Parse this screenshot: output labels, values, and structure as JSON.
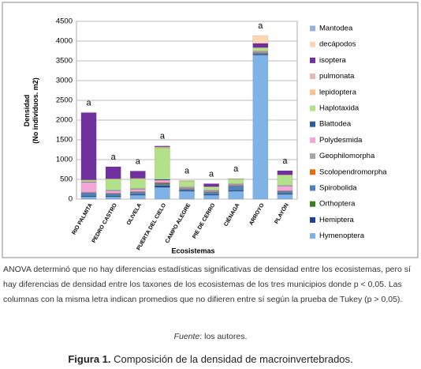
{
  "chart_data": {
    "type": "stacked_bar",
    "ylabel": [
      "Densidad",
      "(No individuos. m2)"
    ],
    "xlabel": "Ecosistemas",
    "categories": [
      "RIO PALMITA",
      "PEDRO CASTRO",
      "OLIVELA",
      "PUERTA DEL CIELO",
      "CAMPO ALEGRE",
      "PIE DE CERRO",
      "CIÉNAGA",
      "ARROYO",
      "PLAYÓN"
    ],
    "annotations": [
      "a",
      "a",
      "a",
      "a",
      "a",
      "a",
      "a",
      "a",
      "a"
    ],
    "ylim": [
      0,
      4500
    ],
    "yticks": [
      0,
      500,
      1000,
      1500,
      2000,
      2500,
      3000,
      3500,
      4000,
      4500
    ],
    "grid": true,
    "series": [
      {
        "name": "Hymenoptera",
        "color": "#7fb2e5",
        "values": [
          60,
          60,
          100,
          300,
          200,
          100,
          200,
          3650,
          120
        ]
      },
      {
        "name": "Hemiptera",
        "color": "#1f3f8f",
        "values": [
          10,
          10,
          10,
          20,
          10,
          10,
          10,
          10,
          10
        ]
      },
      {
        "name": "Orthoptera",
        "color": "#3a7d22",
        "values": [
          5,
          5,
          5,
          10,
          5,
          5,
          5,
          5,
          5
        ]
      },
      {
        "name": "Spirobolida",
        "color": "#4f81bd",
        "values": [
          80,
          60,
          60,
          60,
          40,
          60,
          120,
          30,
          60
        ]
      },
      {
        "name": "Scolopendromorpha",
        "color": "#e46c0a",
        "values": [
          10,
          10,
          10,
          20,
          10,
          10,
          10,
          10,
          10
        ]
      },
      {
        "name": "Geophilomorpha",
        "color": "#a6a6a6",
        "values": [
          10,
          10,
          10,
          10,
          10,
          10,
          10,
          10,
          10
        ]
      },
      {
        "name": "Polydesmida",
        "color": "#f4a6d7",
        "values": [
          250,
          60,
          60,
          60,
          20,
          20,
          20,
          20,
          120
        ]
      },
      {
        "name": "Blattodea",
        "color": "#2e5c9a",
        "values": [
          10,
          10,
          10,
          20,
          10,
          10,
          10,
          10,
          10
        ]
      },
      {
        "name": "Haplotaxida",
        "color": "#b3e08a",
        "values": [
          40,
          280,
          250,
          800,
          150,
          80,
          120,
          80,
          260
        ]
      },
      {
        "name": "lepidoptera",
        "color": "#fac090",
        "values": [
          10,
          10,
          10,
          20,
          10,
          10,
          10,
          10,
          10
        ]
      },
      {
        "name": "pulmonata",
        "color": "#e6b9b8",
        "values": [
          5,
          5,
          5,
          5,
          5,
          5,
          5,
          5,
          5
        ]
      },
      {
        "name": "isoptera",
        "color": "#7030a0",
        "values": [
          1700,
          300,
          180,
          20,
          0,
          70,
          0,
          100,
          100
        ]
      },
      {
        "name": "decápodos",
        "color": "#fcd5b5",
        "values": [
          0,
          0,
          0,
          0,
          0,
          0,
          0,
          200,
          0
        ]
      },
      {
        "name": "Mantodea",
        "color": "#95b3d7",
        "values": [
          0,
          0,
          0,
          0,
          0,
          0,
          0,
          0,
          0
        ]
      }
    ]
  },
  "note": "ANOVA determinó que no hay diferencias estadísticas significativas de densidad entre los ecosistemas, pero sí hay diferencias de densidad entre los taxones de los ecosistemas de los tres municipios donde p < 0,05. Las columnas con la misma letra indican promedios que no difieren entre sí según la prueba de Tukey (p > 0,05).",
  "source_label": "Fuente",
  "source_text": ": los autores.",
  "figure_label": "Figura 1.",
  "figure_caption": "Composición de la densidad de macroinvertebrados."
}
